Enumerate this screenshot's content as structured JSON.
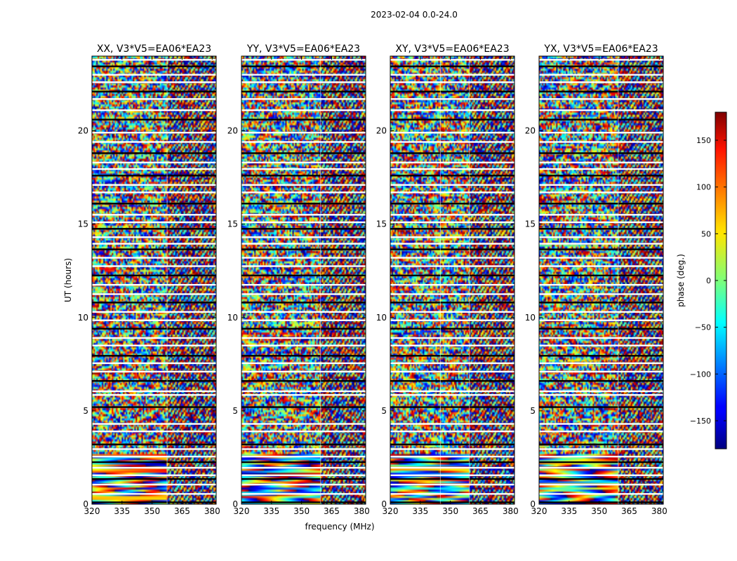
{
  "page_title": "2023-02-04 0.0-24.0",
  "chart_data": [
    {
      "type": "heatmap",
      "title": "XX, V3*V5=EA06*EA23",
      "xlabel": "",
      "ylabel": "UT (hours)",
      "xlim": [
        320,
        382
      ],
      "ylim": [
        0,
        24
      ],
      "x_ticks": [
        320,
        335,
        350,
        365,
        380
      ],
      "y_ticks": [
        0,
        5,
        10,
        15,
        20
      ],
      "value_range": [
        -180,
        180
      ],
      "vlines_x": [
        357.5
      ]
    },
    {
      "type": "heatmap",
      "title": "YY, V3*V5=EA06*EA23",
      "xlabel": "frequency (MHz)",
      "ylabel": "",
      "xlim": [
        320,
        382
      ],
      "ylim": [
        0,
        24
      ],
      "x_ticks": [
        320,
        335,
        350,
        365,
        380
      ],
      "y_ticks": [
        0,
        5,
        10,
        15,
        20
      ],
      "value_range": [
        -180,
        180
      ],
      "vlines_x": [
        359.5
      ]
    },
    {
      "type": "heatmap",
      "title": "XY, V3*V5=EA06*EA23",
      "xlabel": "",
      "ylabel": "",
      "xlim": [
        320,
        382
      ],
      "ylim": [
        0,
        24
      ],
      "x_ticks": [
        320,
        335,
        350,
        365,
        380
      ],
      "y_ticks": [
        0,
        5,
        10,
        15,
        20
      ],
      "value_range": [
        -180,
        180
      ],
      "vlines_x": [
        345,
        359.5
      ]
    },
    {
      "type": "heatmap",
      "title": "YX, V3*V5=EA06*EA23",
      "xlabel": "",
      "ylabel": "",
      "xlim": [
        320,
        382
      ],
      "ylim": [
        0,
        24
      ],
      "x_ticks": [
        320,
        335,
        350,
        365,
        380
      ],
      "y_ticks": [
        0,
        5,
        10,
        15,
        20
      ],
      "value_range": [
        -180,
        180
      ],
      "vlines_x": [
        359.5
      ]
    }
  ],
  "colorbar": {
    "label": "phase (deg.)",
    "range": [
      -180,
      180
    ],
    "ticks": [
      150,
      100,
      50,
      0,
      -50,
      -100,
      -150
    ],
    "tick_labels": [
      "150",
      "100",
      "50",
      "0",
      "−50",
      "−100",
      "−150"
    ],
    "colormap": "jet"
  },
  "flagged_hours": [
    0.1,
    0.55,
    1.05,
    1.35,
    1.55,
    1.95,
    2.25,
    2.55,
    2.95,
    3.2,
    3.9,
    4.3,
    5.2,
    5.85,
    6.05,
    6.6,
    7.1,
    7.55,
    7.95,
    8.5,
    8.9,
    9.4,
    9.85,
    10.3,
    10.8,
    11.25,
    11.75,
    12.25,
    12.75,
    13.2,
    13.65,
    13.95,
    14.3,
    14.75,
    15.1,
    15.5,
    16.1,
    16.7,
    17.1,
    17.6,
    17.95,
    18.3,
    18.8,
    19.4,
    19.9,
    20.6,
    21.1,
    21.7,
    22.1,
    22.6,
    23.0,
    23.45,
    23.8
  ]
}
